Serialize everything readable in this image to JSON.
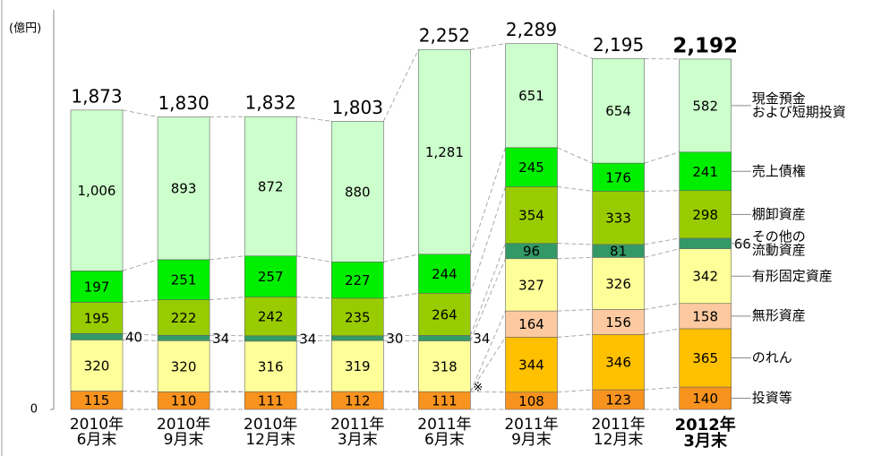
{
  "chart_data": {
    "type": "stacked_bar",
    "unit_label": "(億円)",
    "categories": [
      "2010年\n6月末",
      "2010年\n9月末",
      "2010年\n12月末",
      "2011年\n3月末",
      "2011年\n6月末",
      "2011年\n9月末",
      "2011年\n12月末",
      "2012年\n3月末"
    ],
    "ylim": [
      0,
      2500
    ],
    "yticks": [
      0
    ],
    "series": [
      {
        "name": "投資等",
        "color": "#f7931e",
        "values": [
          115,
          110,
          111,
          112,
          111,
          108,
          123,
          140
        ]
      },
      {
        "name": "のれん",
        "color": "#ffc000",
        "values": [
          null,
          null,
          null,
          null,
          null,
          344,
          346,
          365
        ]
      },
      {
        "name": "無形資産",
        "color": "#fcc9a0",
        "values": [
          null,
          null,
          null,
          null,
          null,
          164,
          156,
          158
        ]
      },
      {
        "name": "有形固定資産",
        "color": "#ffff99",
        "values": [
          320,
          320,
          316,
          319,
          318,
          327,
          326,
          342
        ]
      },
      {
        "name": "その他の\n流動資産",
        "color": "#339966",
        "values": [
          40,
          34,
          34,
          30,
          34,
          96,
          81,
          66
        ]
      },
      {
        "name": "棚卸資産",
        "color": "#99cc00",
        "values": [
          195,
          222,
          242,
          235,
          264,
          354,
          333,
          298
        ]
      },
      {
        "name": "売上債権",
        "color": "#00ee00",
        "values": [
          197,
          251,
          257,
          227,
          244,
          245,
          176,
          241
        ]
      },
      {
        "name": "現金預金\nおよび短期投資",
        "color": "#ccffcc",
        "values": [
          1006,
          893,
          872,
          880,
          1281,
          651,
          654,
          582
        ],
        "value_labels": [
          "1,006",
          "893",
          "872",
          "880",
          "1,281",
          "651",
          "654",
          "582"
        ]
      }
    ],
    "totals": {
      "values": [
        1873,
        1830,
        1832,
        1803,
        2252,
        2289,
        2195,
        2192
      ],
      "value_labels": [
        "1,873",
        "1,830",
        "1,832",
        "1,803",
        "2,252",
        "2,289",
        "2,195",
        "2,192"
      ]
    },
    "annotations": [
      {
        "text": "※",
        "category": 4
      }
    ]
  }
}
